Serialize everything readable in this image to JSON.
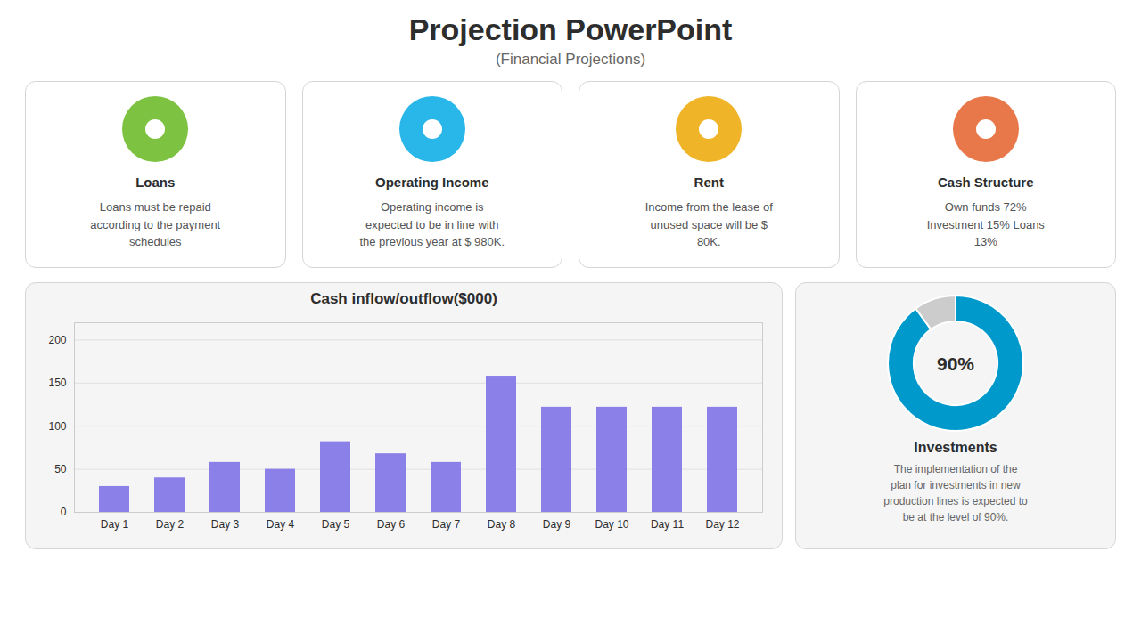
{
  "title": "Projection PowerPoint",
  "subtitle": "(Financial Projections)",
  "annotations": [
    {
      "title": "Loans",
      "text": "Loans must be repaid\naccording to the payment\nschedules",
      "color": "#7ec242"
    },
    {
      "title": "Operating Income",
      "text": "Operating income is\nexpected to be in line with\nthe previous year at $ 980K.",
      "color": "#29b6e8"
    },
    {
      "title": "Rent",
      "text": "Income from the lease of\nunused space will be $\n80K.",
      "color": "#f0b429"
    },
    {
      "title": "Cash Structure",
      "text": "Own funds 72%\nInvestment 15% Loans\n13%",
      "color": "#e8784a"
    }
  ],
  "chart_data": [
    {
      "type": "bar",
      "title": "Cash inflow/outflow($000)",
      "categories": [
        "Day 1",
        "Day 2",
        "Day 3",
        "Day 4",
        "Day 5",
        "Day 6",
        "Day 7",
        "Day 8",
        "Day 9",
        "Day 10",
        "Day 11",
        "Day 12"
      ],
      "values": [
        30,
        40,
        58,
        50,
        82,
        68,
        58,
        158,
        122,
        122,
        122,
        122
      ],
      "color": "#8b80e8",
      "ylim": [
        0,
        220
      ],
      "yticks": [
        0,
        50,
        100,
        150,
        200
      ],
      "grid": true
    },
    {
      "type": "pie",
      "title": "Investments",
      "values": [
        90,
        10
      ],
      "colors": [
        "#0099cc",
        "#cccccc"
      ],
      "data_labels": true,
      "value_labels": [
        "90%",
        null
      ],
      "annotations": [
        "The implementation of the\nplan for investments in new\nproduction lines is expected to\nbe at the level of 90%."
      ]
    }
  ]
}
